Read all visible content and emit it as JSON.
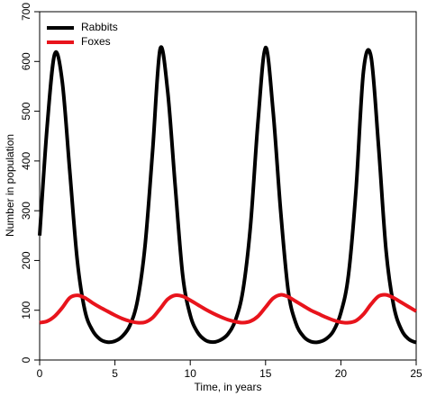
{
  "chart_data": {
    "type": "line",
    "xlabel": "Time, in years",
    "ylabel": "Number in population",
    "x": [
      0,
      0.5,
      1,
      1.5,
      2,
      2.5,
      3,
      3.5,
      4,
      4.5,
      5,
      5.5,
      6,
      6.5,
      7,
      7.5,
      8,
      8.5,
      9,
      9.5,
      10,
      10.5,
      11,
      11.5,
      12,
      12.5,
      13,
      13.5,
      14,
      14.5,
      15,
      15.5,
      16,
      16.5,
      17,
      17.5,
      18,
      18.5,
      19,
      19.5,
      20,
      20.5,
      21,
      21.5,
      22,
      22.5,
      23,
      23.5,
      24,
      24.5,
      25
    ],
    "series": [
      {
        "name": "Rabbits",
        "color": "#000000",
        "values": [
          250,
          470,
          615,
          560,
          380,
          200,
          100,
          60,
          42,
          36,
          38,
          48,
          70,
          120,
          230,
          420,
          625,
          540,
          350,
          170,
          90,
          55,
          40,
          36,
          40,
          52,
          80,
          140,
          270,
          480,
          628,
          500,
          300,
          140,
          75,
          48,
          37,
          36,
          42,
          58,
          95,
          170,
          340,
          580,
          610,
          430,
          220,
          110,
          62,
          42,
          35
        ]
      },
      {
        "name": "Foxes",
        "color": "#e8141c",
        "values": [
          75,
          78,
          88,
          105,
          125,
          130,
          125,
          115,
          106,
          98,
          90,
          83,
          78,
          75,
          76,
          85,
          103,
          122,
          130,
          128,
          120,
          111,
          102,
          94,
          87,
          81,
          77,
          75,
          78,
          88,
          106,
          124,
          131,
          127,
          118,
          109,
          100,
          93,
          86,
          80,
          76,
          75,
          79,
          92,
          112,
          128,
          131,
          125,
          116,
          107,
          98
        ]
      }
    ],
    "xlim": [
      0,
      25
    ],
    "xticks": [
      0,
      5,
      10,
      15,
      20,
      25
    ],
    "ylim": [
      0,
      700
    ],
    "yticks": [
      0,
      100,
      200,
      300,
      400,
      500,
      600,
      700
    ],
    "legend": "upper left",
    "grid": false
  }
}
